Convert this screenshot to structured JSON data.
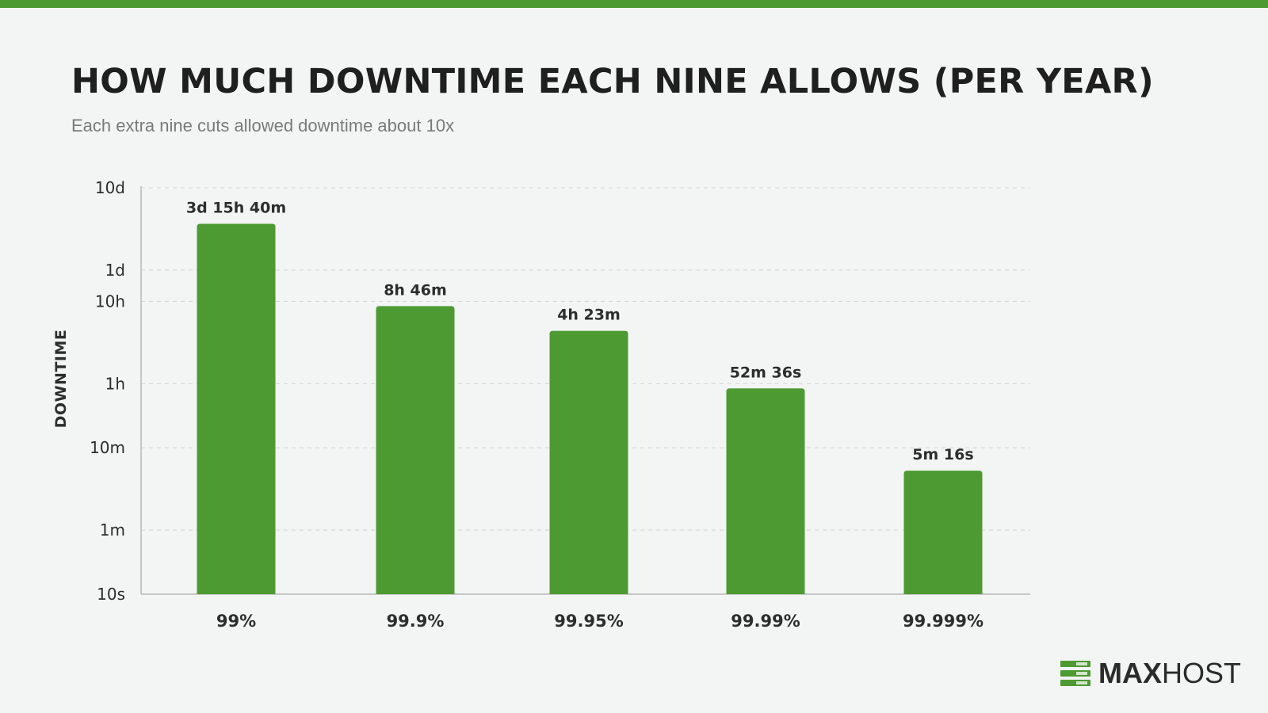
{
  "colors": {
    "accent": "#4e9a32",
    "bar": "#4e9a32",
    "grid": "#d4d4d4",
    "axis": "#b8b8b8"
  },
  "brand": {
    "name_bold": "MAX",
    "name_regular": "HOST",
    "icon": "server-rack-icon"
  },
  "chart_data": {
    "type": "bar",
    "title": "HOW MUCH DOWNTIME EACH NINE ALLOWS (PER YEAR)",
    "subtitle": "Each extra nine cuts allowed downtime about 10x",
    "xlabel": "",
    "ylabel": "DOWNTIME",
    "yscale": "log",
    "y_unit": "seconds",
    "ylim_seconds": [
      10,
      864000
    ],
    "y_ticks": [
      {
        "label": "10d",
        "seconds": 864000
      },
      {
        "label": "1d",
        "seconds": 86400
      },
      {
        "label": "10h",
        "seconds": 36000
      },
      {
        "label": "1h",
        "seconds": 3600
      },
      {
        "label": "10m",
        "seconds": 600
      },
      {
        "label": "1m",
        "seconds": 60
      },
      {
        "label": "10s",
        "seconds": 10
      }
    ],
    "grid": true,
    "categories": [
      "99%",
      "99.9%",
      "99.95%",
      "99.99%",
      "99.999%"
    ],
    "values_seconds": [
      315600,
      31560,
      15780,
      3156,
      316
    ],
    "data_labels": [
      "3d 15h 40m",
      "8h 46m",
      "4h 23m",
      "52m 36s",
      "5m 16s"
    ]
  }
}
